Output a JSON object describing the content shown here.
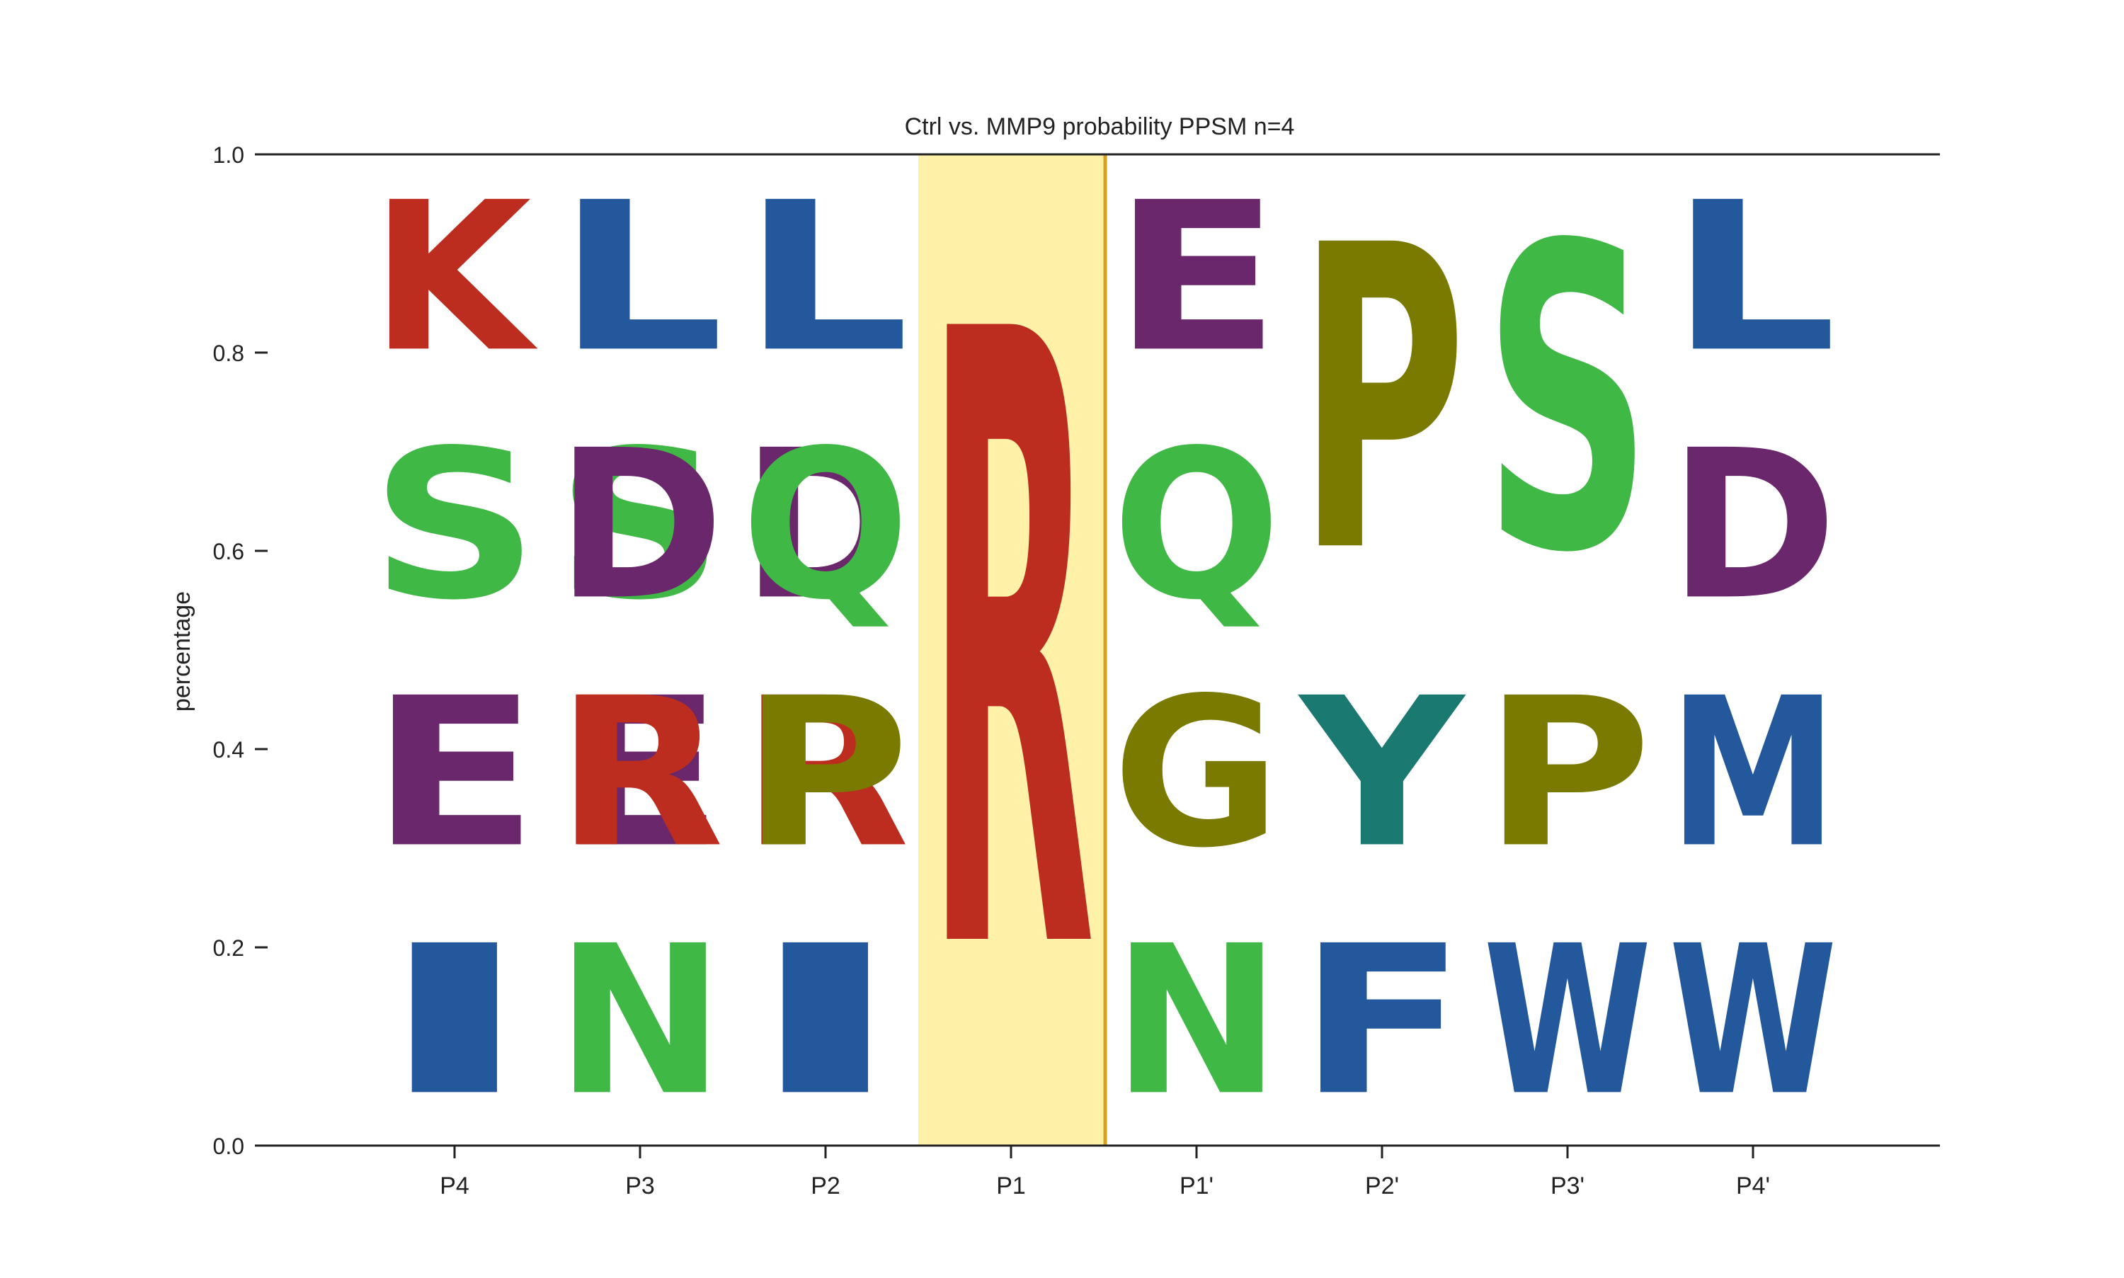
{
  "chart_data": {
    "type": "sequence-logo",
    "title": "Ctrl vs. MMP9 probability PPSM n=4",
    "xlabel": "",
    "ylabel": "percentage",
    "ylim": [
      0,
      1
    ],
    "yticks": [
      "0.0",
      "0.2",
      "0.4",
      "0.6",
      "0.8",
      "1.0"
    ],
    "positions": [
      "P4",
      "P3",
      "P2",
      "P1",
      "P1'",
      "P2'",
      "P3'",
      "P4'"
    ],
    "highlight": {
      "position": "P1",
      "fill": "#FFF1A8",
      "line": "#D9A020"
    },
    "colors": {
      "red": "#BC2D20",
      "blue": "#23589C",
      "green": "#40B845",
      "purple": "#6A276B",
      "olive": "#7A7A00",
      "teal": "#1A7A72"
    },
    "columns": [
      {
        "position": "P4",
        "letters": [
          {
            "letter": "I",
            "start": 0.0,
            "end": 0.25,
            "color": "#23589C"
          },
          {
            "letter": "E",
            "start": 0.25,
            "end": 0.5,
            "color": "#6A276B"
          },
          {
            "letter": "S",
            "start": 0.5,
            "end": 0.75,
            "color": "#40B845"
          },
          {
            "letter": "K",
            "start": 0.75,
            "end": 1.0,
            "color": "#BC2D20"
          }
        ]
      },
      {
        "position": "P3",
        "letters": [
          {
            "letter": "N",
            "start": 0.0,
            "end": 0.25,
            "color": "#40B845"
          },
          {
            "letter": "E",
            "start": 0.25,
            "end": 0.5,
            "color": "#6A276B"
          },
          {
            "letter": "R",
            "start": 0.25,
            "end": 0.5,
            "color": "#BC2D20"
          },
          {
            "letter": "S",
            "start": 0.5,
            "end": 0.75,
            "color": "#40B845"
          },
          {
            "letter": "D",
            "start": 0.5,
            "end": 0.75,
            "color": "#6A276B"
          },
          {
            "letter": "L",
            "start": 0.75,
            "end": 1.0,
            "color": "#23589C"
          }
        ]
      },
      {
        "position": "P2",
        "letters": [
          {
            "letter": "I",
            "start": 0.0,
            "end": 0.25,
            "color": "#23589C"
          },
          {
            "letter": "R",
            "start": 0.25,
            "end": 0.5,
            "color": "#BC2D20"
          },
          {
            "letter": "P",
            "start": 0.25,
            "end": 0.5,
            "color": "#7A7A00"
          },
          {
            "letter": "D",
            "start": 0.5,
            "end": 0.75,
            "color": "#6A276B"
          },
          {
            "letter": "Q",
            "start": 0.5,
            "end": 0.75,
            "color": "#40B845"
          },
          {
            "letter": "L",
            "start": 0.75,
            "end": 1.0,
            "color": "#23589C"
          }
        ]
      },
      {
        "position": "P1",
        "letters": [
          {
            "letter": "R",
            "start": 0.0,
            "end": 1.0,
            "color": "#BC2D20"
          }
        ]
      },
      {
        "position": "P1'",
        "letters": [
          {
            "letter": "N",
            "start": 0.0,
            "end": 0.25,
            "color": "#40B845"
          },
          {
            "letter": "G",
            "start": 0.25,
            "end": 0.5,
            "color": "#7A7A00"
          },
          {
            "letter": "Q",
            "start": 0.5,
            "end": 0.75,
            "color": "#40B845"
          },
          {
            "letter": "E",
            "start": 0.75,
            "end": 1.0,
            "color": "#6A276B"
          }
        ]
      },
      {
        "position": "P2'",
        "letters": [
          {
            "letter": "F",
            "start": 0.0,
            "end": 0.25,
            "color": "#23589C"
          },
          {
            "letter": "Y",
            "start": 0.25,
            "end": 0.5,
            "color": "#1A7A72"
          },
          {
            "letter": "P",
            "start": 0.5,
            "end": 1.0,
            "color": "#7A7A00"
          }
        ]
      },
      {
        "position": "P3'",
        "letters": [
          {
            "letter": "W",
            "start": 0.0,
            "end": 0.25,
            "color": "#23589C"
          },
          {
            "letter": "P",
            "start": 0.25,
            "end": 0.5,
            "color": "#7A7A00"
          },
          {
            "letter": "S",
            "start": 0.5,
            "end": 1.0,
            "color": "#40B845"
          }
        ]
      },
      {
        "position": "P4'",
        "letters": [
          {
            "letter": "W",
            "start": 0.0,
            "end": 0.25,
            "color": "#23589C"
          },
          {
            "letter": "M",
            "start": 0.25,
            "end": 0.5,
            "color": "#23589C"
          },
          {
            "letter": "D",
            "start": 0.5,
            "end": 0.75,
            "color": "#6A276B"
          },
          {
            "letter": "L",
            "start": 0.75,
            "end": 1.0,
            "color": "#23589C"
          }
        ]
      }
    ]
  }
}
